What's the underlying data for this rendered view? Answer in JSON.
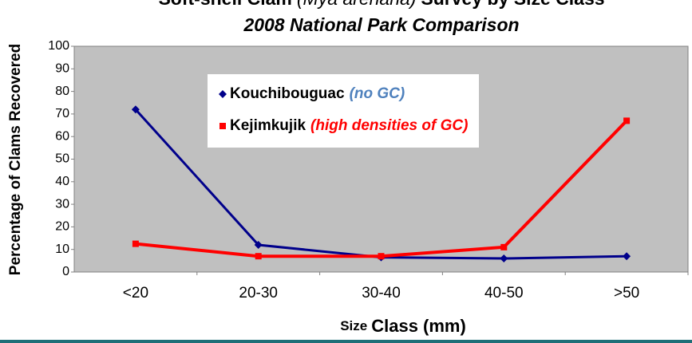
{
  "chart_data": {
    "type": "line",
    "title": [
      "Soft-shell Clam",
      "(Mya arenaria)",
      "Survey by Size Class"
    ],
    "subtitle": "2008 National Park Comparison",
    "x_label": [
      "Size",
      "Class (mm)"
    ],
    "y_label": "Percentage of Clams Recovered",
    "categories": [
      "<20",
      "20-30",
      "30-40",
      "40-50",
      ">50"
    ],
    "series": [
      {
        "name": "Kouchibouguac",
        "note": "(no GC)",
        "note_color": "#4f81bd",
        "color": "#00008b",
        "marker": "diamond",
        "values": [
          72,
          12,
          6.5,
          6,
          7
        ]
      },
      {
        "name": "Kejimkujik",
        "note": "(high densities of GC)",
        "note_color": "#ff0000",
        "color": "#ff0000",
        "marker": "square",
        "values": [
          12.5,
          7,
          7,
          11,
          67
        ]
      }
    ],
    "ylim": [
      0,
      100
    ],
    "yticks": [
      0,
      10,
      20,
      30,
      40,
      50,
      60,
      70,
      80,
      90,
      100
    ],
    "grid": false
  }
}
